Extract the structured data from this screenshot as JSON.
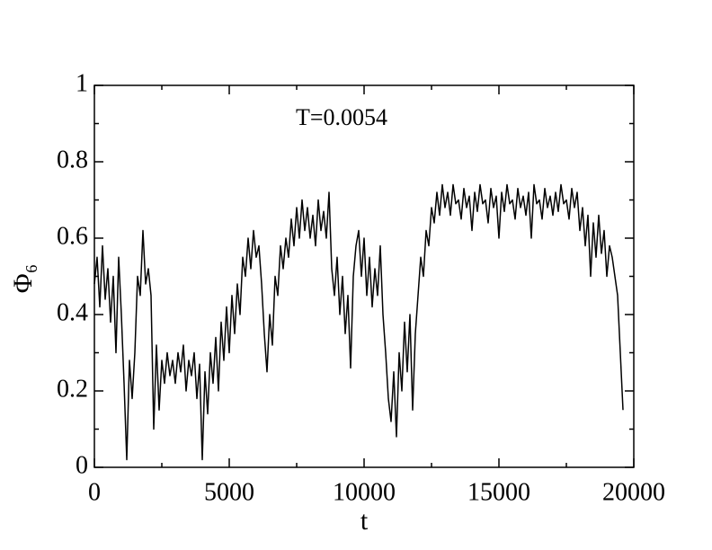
{
  "chart_data": {
    "type": "line",
    "xlabel": "t",
    "ylabel": "Φ₆",
    "annotation": "T=0.0054",
    "xlim": [
      0,
      20000
    ],
    "ylim": [
      0,
      1
    ],
    "xticks": [
      0,
      5000,
      10000,
      15000,
      20000
    ],
    "yticks": [
      0,
      0.2,
      0.4,
      0.6,
      0.8,
      1
    ],
    "xminorticks": [
      2500,
      7500,
      12500,
      17500
    ],
    "yminorticks": [
      0.1,
      0.3,
      0.5,
      0.7,
      0.9
    ],
    "color": "#000000",
    "x": [
      0,
      100,
      200,
      300,
      400,
      500,
      600,
      700,
      800,
      900,
      1000,
      1100,
      1200,
      1300,
      1400,
      1500,
      1600,
      1700,
      1800,
      1900,
      2000,
      2100,
      2200,
      2300,
      2400,
      2500,
      2600,
      2700,
      2800,
      2900,
      3000,
      3100,
      3200,
      3300,
      3400,
      3500,
      3600,
      3700,
      3800,
      3900,
      4000,
      4100,
      4200,
      4300,
      4400,
      4500,
      4600,
      4700,
      4800,
      4900,
      5000,
      5100,
      5200,
      5300,
      5400,
      5500,
      5600,
      5700,
      5800,
      5900,
      6000,
      6100,
      6200,
      6300,
      6400,
      6500,
      6600,
      6700,
      6800,
      6900,
      7000,
      7100,
      7200,
      7300,
      7400,
      7500,
      7600,
      7700,
      7800,
      7900,
      8000,
      8100,
      8200,
      8300,
      8400,
      8500,
      8600,
      8700,
      8800,
      8900,
      9000,
      9100,
      9200,
      9300,
      9400,
      9500,
      9600,
      9700,
      9800,
      9900,
      10000,
      10100,
      10200,
      10300,
      10400,
      10500,
      10600,
      10700,
      10800,
      10900,
      11000,
      11100,
      11200,
      11300,
      11400,
      11500,
      11600,
      11700,
      11800,
      11900,
      12000,
      12100,
      12200,
      12300,
      12400,
      12500,
      12600,
      12700,
      12800,
      12900,
      13000,
      13100,
      13200,
      13300,
      13400,
      13500,
      13600,
      13700,
      13800,
      13900,
      14000,
      14100,
      14200,
      14300,
      14400,
      14500,
      14600,
      14700,
      14800,
      14900,
      15000,
      15100,
      15200,
      15300,
      15400,
      15500,
      15600,
      15700,
      15800,
      15900,
      16000,
      16100,
      16200,
      16300,
      16400,
      16500,
      16600,
      16700,
      16800,
      16900,
      17000,
      17100,
      17200,
      17300,
      17400,
      17500,
      17600,
      17700,
      17800,
      17900,
      18000,
      18100,
      18200,
      18300,
      18400,
      18500,
      18600,
      18700,
      18800,
      18900,
      19000,
      19100,
      19200,
      19300,
      19400,
      19500,
      19600
    ],
    "values": [
      0.48,
      0.55,
      0.42,
      0.58,
      0.44,
      0.52,
      0.38,
      0.5,
      0.3,
      0.55,
      0.4,
      0.22,
      0.02,
      0.28,
      0.18,
      0.3,
      0.5,
      0.45,
      0.62,
      0.48,
      0.52,
      0.45,
      0.1,
      0.32,
      0.15,
      0.28,
      0.22,
      0.3,
      0.24,
      0.28,
      0.22,
      0.3,
      0.25,
      0.32,
      0.2,
      0.28,
      0.24,
      0.3,
      0.18,
      0.27,
      0.02,
      0.25,
      0.14,
      0.3,
      0.22,
      0.34,
      0.2,
      0.38,
      0.28,
      0.42,
      0.3,
      0.45,
      0.35,
      0.48,
      0.4,
      0.55,
      0.5,
      0.6,
      0.52,
      0.62,
      0.55,
      0.58,
      0.48,
      0.35,
      0.25,
      0.4,
      0.32,
      0.5,
      0.45,
      0.58,
      0.52,
      0.6,
      0.55,
      0.65,
      0.58,
      0.68,
      0.6,
      0.7,
      0.62,
      0.68,
      0.6,
      0.66,
      0.58,
      0.7,
      0.62,
      0.67,
      0.6,
      0.72,
      0.52,
      0.45,
      0.55,
      0.4,
      0.5,
      0.35,
      0.45,
      0.26,
      0.5,
      0.58,
      0.62,
      0.5,
      0.6,
      0.45,
      0.55,
      0.42,
      0.52,
      0.45,
      0.58,
      0.4,
      0.3,
      0.18,
      0.12,
      0.25,
      0.08,
      0.3,
      0.2,
      0.38,
      0.25,
      0.4,
      0.15,
      0.35,
      0.45,
      0.55,
      0.5,
      0.62,
      0.58,
      0.68,
      0.64,
      0.72,
      0.66,
      0.74,
      0.68,
      0.72,
      0.66,
      0.74,
      0.69,
      0.7,
      0.65,
      0.73,
      0.68,
      0.71,
      0.62,
      0.72,
      0.67,
      0.74,
      0.69,
      0.7,
      0.64,
      0.73,
      0.68,
      0.71,
      0.6,
      0.72,
      0.67,
      0.74,
      0.69,
      0.7,
      0.65,
      0.73,
      0.68,
      0.71,
      0.66,
      0.72,
      0.6,
      0.74,
      0.69,
      0.7,
      0.65,
      0.73,
      0.68,
      0.71,
      0.66,
      0.72,
      0.67,
      0.74,
      0.69,
      0.7,
      0.65,
      0.73,
      0.68,
      0.72,
      0.62,
      0.68,
      0.58,
      0.66,
      0.5,
      0.64,
      0.55,
      0.66,
      0.56,
      0.62,
      0.5,
      0.58,
      0.55,
      0.5,
      0.45,
      0.3,
      0.15
    ]
  }
}
